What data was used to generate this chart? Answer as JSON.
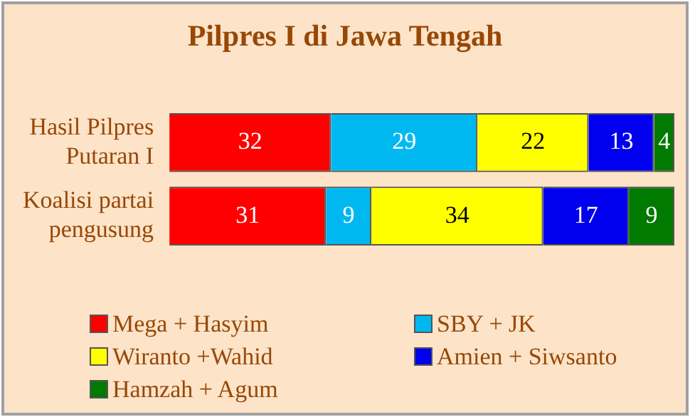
{
  "chart_data": {
    "type": "bar",
    "orientation": "horizontal",
    "stacked": true,
    "title": "Pilpres I di Jawa Tengah",
    "categories": [
      "Hasil Pilpres Putaran I",
      "Koalisi partai pengusung"
    ],
    "series": [
      {
        "name": "Mega + Hasyim",
        "color": "#ff0000",
        "values": [
          32,
          31
        ]
      },
      {
        "name": "SBY + JK",
        "color": "#00b8f0",
        "values": [
          29,
          9
        ]
      },
      {
        "name": "Wiranto +Wahid",
        "color": "#ffff00",
        "values": [
          22,
          34
        ]
      },
      {
        "name": "Amien + Siwsanto",
        "color": "#0000ee",
        "values": [
          13,
          17
        ]
      },
      {
        "name": "Hamzah + Agum",
        "color": "#007a00",
        "values": [
          4,
          9
        ]
      }
    ],
    "xlim": [
      0,
      100
    ],
    "tick_labels": "y",
    "data_labels": true,
    "legend": "bottom"
  }
}
